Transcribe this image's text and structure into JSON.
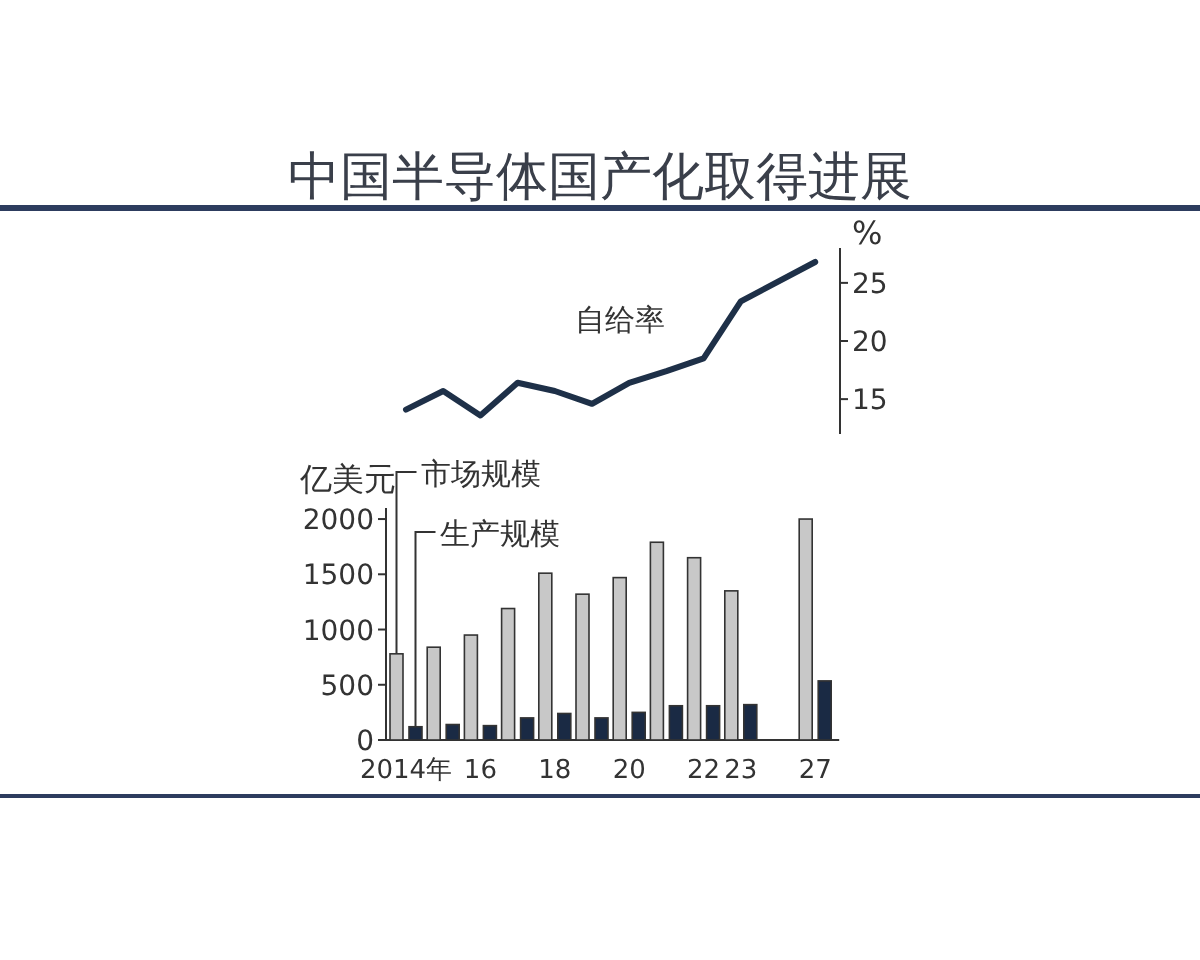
{
  "chart_data": [
    {
      "type": "line",
      "title": "中国半导体国产化取得进展",
      "ylabel": "%",
      "series": [
        {
          "name": "自给率",
          "color": "#1e3048",
          "values": [
            14.1,
            15.7,
            13.6,
            16.4,
            15.7,
            14.6,
            16.4,
            17.4,
            18.5,
            23.4,
            null,
            26.8
          ]
        }
      ],
      "ylim": [
        12,
        28
      ],
      "yticks": [
        15,
        20,
        25
      ],
      "tick_labels": "y"
    },
    {
      "type": "bar",
      "ylabel": "亿美元",
      "categories": [
        "2014年",
        null,
        "16",
        null,
        "18",
        null,
        "20",
        null,
        "22",
        "23",
        null,
        "27"
      ],
      "series": [
        {
          "name": "市场规模",
          "color": "#c8c8c8",
          "values": [
            780,
            840,
            950,
            1190,
            1510,
            1320,
            1470,
            1790,
            1650,
            1350,
            null,
            2000
          ]
        },
        {
          "name": "生产规模",
          "color": "#1a2a44",
          "values": [
            120,
            140,
            130,
            200,
            240,
            200,
            250,
            310,
            310,
            320,
            null,
            535
          ]
        }
      ],
      "ylim": [
        0,
        2100
      ],
      "yticks": [
        0,
        500,
        1000,
        1500,
        2000
      ]
    }
  ]
}
